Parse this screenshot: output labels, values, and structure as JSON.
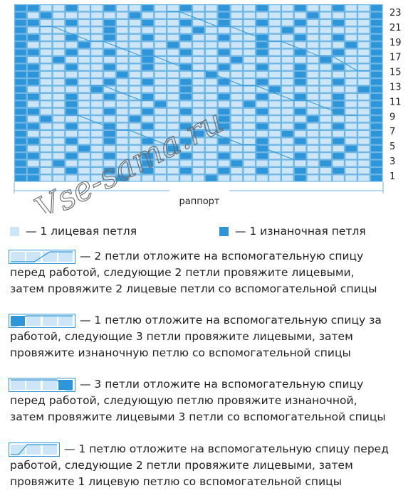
{
  "chart": {
    "row_labels": [
      "23",
      "21",
      "19",
      "17",
      "15",
      "13",
      "11",
      "9",
      "7",
      "5",
      "3",
      "1"
    ],
    "rapport_label": "раппорт",
    "watermark": "Vse-sama.ru",
    "colors": {
      "knit": "#cce6f7",
      "purl": "#2e96d8",
      "grid": "#6fb6e4"
    }
  },
  "legend": {
    "knit_label": "— 1 лицевая петля",
    "purl_label": "— 1 изнаночная петля",
    "items": [
      {
        "lines": [
          "— 2 петли отложите на вспомогательную спицу",
          "перед работой, следующие 2 петли провяжите лицевыми,",
          "затем провяжите 2 лицевые петли со вспомогательной спицы"
        ]
      },
      {
        "lines": [
          "— 1 петлю отложите на вспомогательную спицу за",
          "работой, следующие 3 петли провяжите лицевыми, затем",
          "провяжите изнаночную петлю со вспомогательной спицы"
        ]
      },
      {
        "lines": [
          "— 3 петли отложите на вспомогательную спицу",
          "перед работой, следующую петлю провяжите изнаночной,",
          "затем провяжите лицевыми 3 петли со вспомогательной спицы"
        ]
      },
      {
        "lines": [
          "— 1 петлю отложите на вспомогательную спицу перед",
          "работой, следующие 2 петли провяжите лицевыми, затем",
          "провяжите 1 лицевую петлю со вспомогательной спицы"
        ]
      }
    ]
  }
}
